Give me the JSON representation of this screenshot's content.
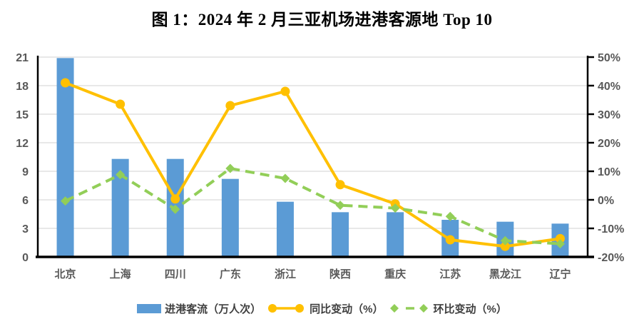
{
  "title": "图 1：2024 年 2 月三亚机场进港客源地 Top 10",
  "colors": {
    "bar": "#5B9BD5",
    "yoy": "#FFC000",
    "mom": "#92CE58",
    "grid": "#D9D9D9",
    "axis": "#000000",
    "axis_label": "#595959",
    "legend_text": "#3f3f3f",
    "title_text": "#000000",
    "background": "#FFFFFF"
  },
  "legend": {
    "items": [
      {
        "id": "bar",
        "label": "进港客流（万人次）"
      },
      {
        "id": "yoy",
        "label": "同比变动（%）"
      },
      {
        "id": "mom",
        "label": "环比变动（%）"
      }
    ]
  },
  "chart_data": {
    "type": "bar",
    "subtype": "bar+line combo, dual axis",
    "title": "图 1：2024 年 2 月三亚机场进港客源地 Top 10",
    "categories": [
      "北京",
      "上海",
      "四川",
      "广东",
      "浙江",
      "陕西",
      "重庆",
      "江苏",
      "黑龙江",
      "辽宁"
    ],
    "series": [
      {
        "name": "进港客流（万人次）",
        "type": "bar",
        "axis": "left",
        "values": [
          20.9,
          10.3,
          10.3,
          8.2,
          5.8,
          4.7,
          4.7,
          3.9,
          3.7,
          3.5
        ]
      },
      {
        "name": "同比变动（%）",
        "type": "line",
        "marker": "circle",
        "axis": "right",
        "values": [
          41,
          33.5,
          0.3,
          33,
          38,
          5.3,
          -1.4,
          -14,
          -16.3,
          -13.6
        ]
      },
      {
        "name": "环比变动（%）",
        "type": "line-dashed",
        "marker": "diamond",
        "axis": "right",
        "values": [
          -0.4,
          8.8,
          -3.3,
          11,
          7.5,
          -1.9,
          -2.9,
          -5.8,
          -14.3,
          -15.4
        ]
      }
    ],
    "left_axis": {
      "min": 0,
      "max": 21,
      "step": 3,
      "ticks": [
        "0",
        "3",
        "6",
        "9",
        "12",
        "15",
        "18",
        "21"
      ]
    },
    "right_axis": {
      "min": -20,
      "max": 50,
      "step": 10,
      "ticks": [
        "-20%",
        "-10%",
        "0%",
        "10%",
        "20%",
        "30%",
        "40%",
        "50%"
      ]
    },
    "grid": true,
    "legend_position": "bottom"
  }
}
